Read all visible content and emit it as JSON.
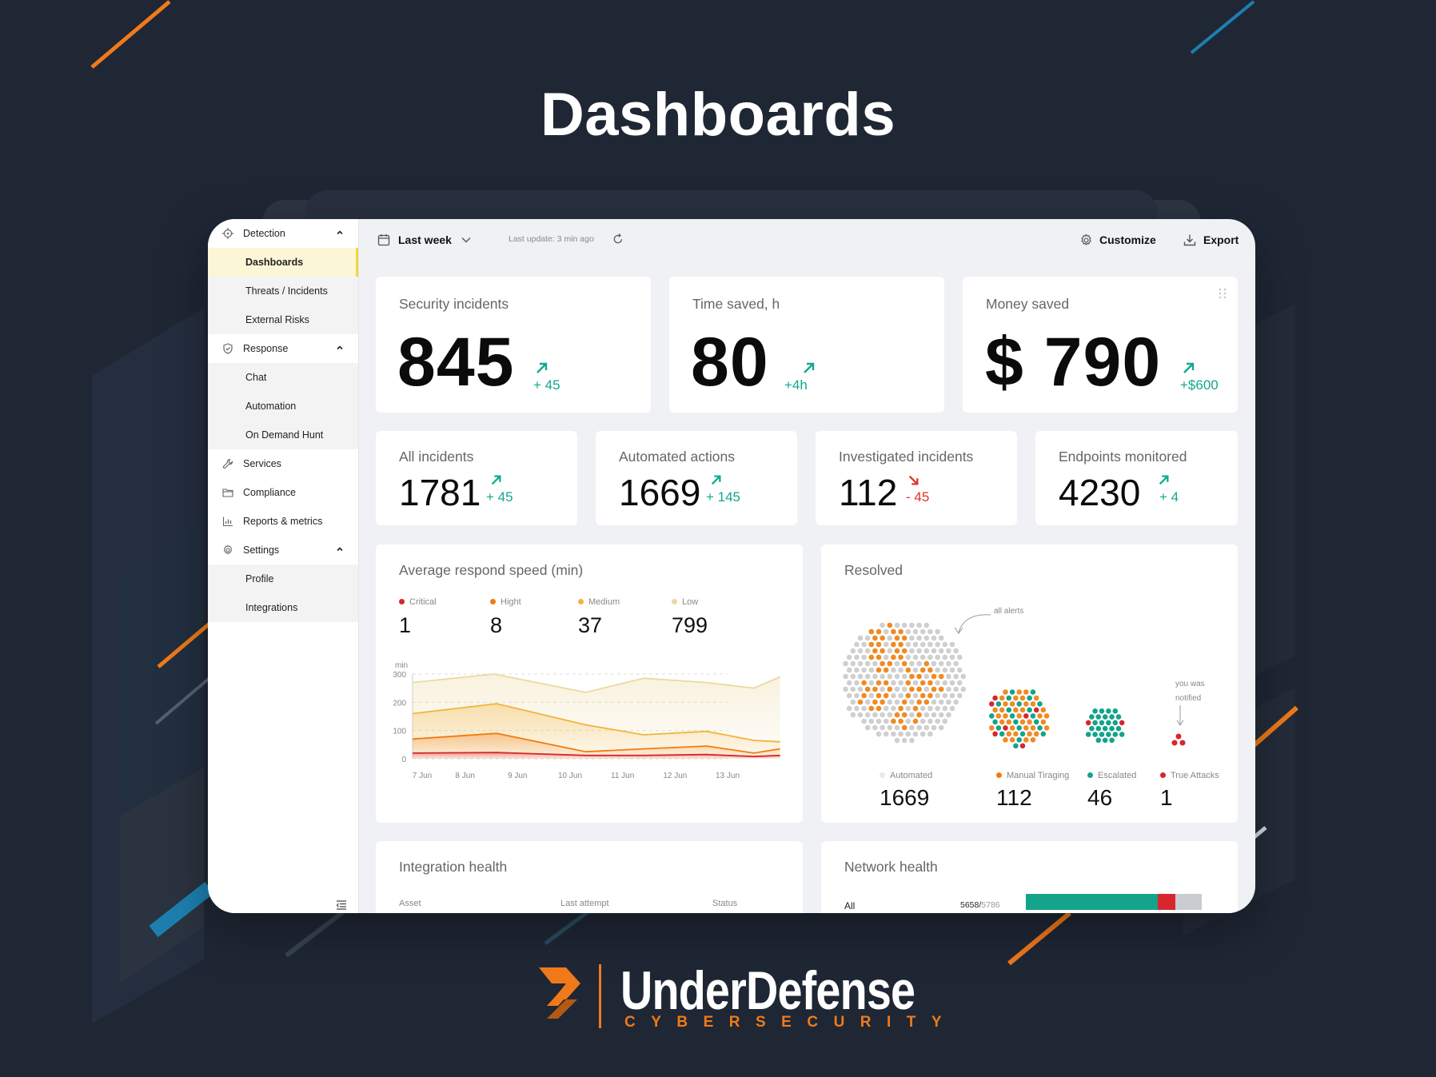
{
  "page": {
    "title": "Dashboards"
  },
  "brand": {
    "name": "UnderDefense",
    "tagline": "CYBERSECURITY"
  },
  "colors": {
    "accent_orange": "#f07a1a",
    "accent_blue": "#1d6b96",
    "up": "#13a88f",
    "down": "#e0332c",
    "critical": "#d8262d",
    "hight": "#f07c10",
    "medium": "#f3b33c",
    "low": "#ecd9a0",
    "automated": "#c8c8c8",
    "escalated": "#14a38b"
  },
  "sidebar": {
    "items": [
      {
        "label": "Detection",
        "icon": "crosshair-icon",
        "type": "section",
        "expanded": true
      },
      {
        "label": "Dashboards",
        "type": "sub",
        "active": true
      },
      {
        "label": "Threats / Incidents",
        "type": "sub"
      },
      {
        "label": "External Risks",
        "type": "sub"
      },
      {
        "label": "Response",
        "icon": "shield-check-icon",
        "type": "section",
        "expanded": true
      },
      {
        "label": "Chat",
        "type": "sub"
      },
      {
        "label": "Automation",
        "type": "sub"
      },
      {
        "label": "On Demand Hunt",
        "type": "sub"
      },
      {
        "label": "Services",
        "icon": "wrench-icon",
        "type": "section"
      },
      {
        "label": "Compliance",
        "icon": "folder-icon",
        "type": "section"
      },
      {
        "label": "Reports & metrics",
        "icon": "bar-chart-icon",
        "type": "section"
      },
      {
        "label": "Settings",
        "icon": "gear-icon",
        "type": "section",
        "expanded": true
      },
      {
        "label": "Profile",
        "type": "sub"
      },
      {
        "label": "Integrations",
        "type": "sub"
      }
    ]
  },
  "toolbar": {
    "period": "Last week",
    "last_update": "Last update: 3 min ago",
    "customize": "Customize",
    "export": "Export"
  },
  "kpis_top": [
    {
      "title": "Security incidents",
      "value": "845",
      "delta": "+ 45",
      "trend": "up"
    },
    {
      "title": "Time saved, h",
      "value": "80",
      "delta": "+4h",
      "trend": "up"
    },
    {
      "title": "Money saved",
      "value": "$ 790",
      "delta": "+$600",
      "trend": "up"
    }
  ],
  "kpis_row": [
    {
      "title": "All incidents",
      "value": "1781",
      "delta": "+ 45",
      "trend": "up"
    },
    {
      "title": "Automated actions",
      "value": "1669",
      "delta": "+ 145",
      "trend": "up"
    },
    {
      "title": "Investigated incidents",
      "value": "112",
      "delta": "- 45",
      "trend": "down"
    },
    {
      "title": "Endpoints monitored",
      "value": "4230",
      "delta": "+ 4",
      "trend": "up"
    }
  ],
  "respond_speed": {
    "title": "Average respond speed (min)",
    "legend": [
      {
        "label": "Critical",
        "value": "1",
        "color": "#d8262d"
      },
      {
        "label": "Hight",
        "value": "8",
        "color": "#f07c10"
      },
      {
        "label": "Medium",
        "value": "37",
        "color": "#f3b33c"
      },
      {
        "label": "Low",
        "value": "799",
        "color": "#ecd9a0"
      }
    ]
  },
  "chart_data": {
    "type": "area",
    "ylabel": "min",
    "ylim": [
      0,
      300
    ],
    "yticks": [
      "300",
      "200",
      "100",
      "0"
    ],
    "categories": [
      "7 Jun",
      "8 Jun",
      "9 Jun",
      "10 Jun",
      "11 Jun",
      "12 Jun",
      "13 Jun"
    ],
    "series": [
      {
        "name": "Low",
        "color": "#ecd9a0",
        "points": [
          [
            0,
            270
          ],
          [
            1.55,
            300
          ],
          [
            3.3,
            235
          ],
          [
            4.4,
            285
          ],
          [
            5.6,
            270
          ],
          [
            6.5,
            250
          ],
          [
            7,
            290
          ]
        ]
      },
      {
        "name": "Medium",
        "color": "#f3b33c",
        "points": [
          [
            0,
            160
          ],
          [
            1.6,
            195
          ],
          [
            3.3,
            120
          ],
          [
            4.4,
            85
          ],
          [
            5.6,
            97
          ],
          [
            6.5,
            65
          ],
          [
            7,
            60
          ]
        ]
      },
      {
        "name": "Hight",
        "color": "#f07c10",
        "points": [
          [
            0,
            70
          ],
          [
            1.6,
            90
          ],
          [
            3.3,
            25
          ],
          [
            4.4,
            35
          ],
          [
            5.6,
            45
          ],
          [
            6.5,
            20
          ],
          [
            7,
            35
          ]
        ]
      },
      {
        "name": "Critical",
        "color": "#d8262d",
        "points": [
          [
            0,
            20
          ],
          [
            1.6,
            22
          ],
          [
            3.3,
            12
          ],
          [
            4.4,
            12
          ],
          [
            5.6,
            15
          ],
          [
            6.5,
            8
          ],
          [
            7,
            12
          ]
        ]
      }
    ]
  },
  "resolved": {
    "title": "Resolved",
    "annotation_all": "all alerts",
    "annotation_notified": "you was notified",
    "groups": [
      {
        "label": "Automated",
        "value": "1669",
        "color": "#e2e2e2"
      },
      {
        "label": "Manual Tiraging",
        "value": "112",
        "color": "#f07c10"
      },
      {
        "label": "Escalated",
        "value": "46",
        "color": "#14a38b"
      },
      {
        "label": "True Attacks",
        "value": "1",
        "color": "#d8262d"
      }
    ]
  },
  "integration_health": {
    "title": "Integration health",
    "columns": [
      "Asset",
      "Last attempt",
      "Status"
    ]
  },
  "network_health": {
    "title": "Network health",
    "row_label": "All",
    "count_main": "5658/",
    "count_total": "5786",
    "bar": {
      "ok": 0.75,
      "error": 0.1,
      "unknown": 0.15
    }
  }
}
